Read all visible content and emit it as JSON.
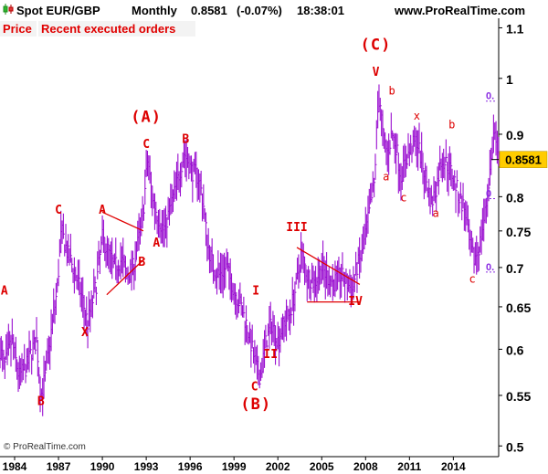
{
  "header": {
    "instrument": "Spot EUR/GBP",
    "period": "Monthly",
    "price": "0.8581",
    "change": "(-0.07%)",
    "time": "18:38:01",
    "site": "www.ProRealTime.com"
  },
  "tabs": [
    {
      "label": "Price"
    },
    {
      "label": "Recent executed orders"
    }
  ],
  "copyright": "© ProRealTime.com",
  "colors": {
    "price_series": "#9a0fd0",
    "wave_labels": "#dd0000",
    "trendlines": "#e00000",
    "current_price_badge": "#ffcc00",
    "fib_markers": "#8a2be2",
    "tab_text": "#e00000",
    "axis_text": "#000000"
  },
  "price_badge": {
    "value": "0.8581"
  },
  "chart_data": {
    "type": "bar",
    "title": "Spot EUR/GBP",
    "xlabel": "",
    "ylabel": "",
    "scale": "log",
    "xlim": [
      1983.0,
      2017.1
    ],
    "ylim": [
      0.49,
      1.12
    ],
    "y_ticks": [
      0.5,
      0.55,
      0.6,
      0.65,
      0.7,
      0.75,
      0.8,
      0.9,
      1,
      1.1
    ],
    "y_tick_labels": [
      "0.5",
      "0.55",
      "0.6",
      "0.65",
      "0.7",
      "0.75",
      "0.8",
      "0.9",
      "1",
      "1.1"
    ],
    "x_ticks": [
      1984,
      1987,
      1990,
      1993,
      1996,
      1999,
      2002,
      2005,
      2008,
      2011,
      2014
    ],
    "x_tick_labels": [
      "1984",
      "1987",
      "1990",
      "1993",
      "1996",
      "1999",
      "2002",
      "2005",
      "2008",
      "2011",
      "2014"
    ],
    "grid": false,
    "price_path": [
      [
        1983.0,
        0.6
      ],
      [
        1983.3,
        0.58
      ],
      [
        1983.8,
        0.61
      ],
      [
        1984.3,
        0.57
      ],
      [
        1984.8,
        0.58
      ],
      [
        1985.2,
        0.6
      ],
      [
        1985.5,
        0.61
      ],
      [
        1985.8,
        0.55
      ],
      [
        1986.1,
        0.57
      ],
      [
        1986.5,
        0.62
      ],
      [
        1986.9,
        0.67
      ],
      [
        1987.2,
        0.75
      ],
      [
        1987.6,
        0.72
      ],
      [
        1988.0,
        0.7
      ],
      [
        1988.5,
        0.67
      ],
      [
        1989.0,
        0.63
      ],
      [
        1989.6,
        0.68
      ],
      [
        1990.0,
        0.74
      ],
      [
        1990.4,
        0.72
      ],
      [
        1990.8,
        0.7
      ],
      [
        1991.3,
        0.71
      ],
      [
        1991.7,
        0.69
      ],
      [
        1992.1,
        0.7
      ],
      [
        1992.5,
        0.74
      ],
      [
        1992.8,
        0.78
      ],
      [
        1993.1,
        0.86
      ],
      [
        1993.4,
        0.8
      ],
      [
        1993.8,
        0.77
      ],
      [
        1994.2,
        0.75
      ],
      [
        1994.6,
        0.78
      ],
      [
        1995.1,
        0.82
      ],
      [
        1995.6,
        0.87
      ],
      [
        1996.1,
        0.84
      ],
      [
        1996.6,
        0.83
      ],
      [
        1996.9,
        0.79
      ],
      [
        1997.2,
        0.73
      ],
      [
        1997.6,
        0.7
      ],
      [
        1998.0,
        0.69
      ],
      [
        1998.5,
        0.7
      ],
      [
        1999.0,
        0.67
      ],
      [
        1999.5,
        0.65
      ],
      [
        2000.0,
        0.62
      ],
      [
        2000.5,
        0.58
      ],
      [
        2000.8,
        0.57
      ],
      [
        2001.2,
        0.61
      ],
      [
        2001.6,
        0.63
      ],
      [
        2002.0,
        0.61
      ],
      [
        2002.4,
        0.63
      ],
      [
        2002.8,
        0.64
      ],
      [
        2003.3,
        0.68
      ],
      [
        2003.6,
        0.72
      ],
      [
        2004.0,
        0.69
      ],
      [
        2004.5,
        0.68
      ],
      [
        2005.0,
        0.7
      ],
      [
        2005.3,
        0.69
      ],
      [
        2005.8,
        0.68
      ],
      [
        2006.3,
        0.69
      ],
      [
        2006.7,
        0.68
      ],
      [
        2007.1,
        0.67
      ],
      [
        2007.4,
        0.7
      ],
      [
        2007.8,
        0.72
      ],
      [
        2008.2,
        0.77
      ],
      [
        2008.6,
        0.82
      ],
      [
        2008.8,
        0.93
      ],
      [
        2008.95,
        0.97
      ],
      [
        2009.2,
        0.89
      ],
      [
        2009.5,
        0.87
      ],
      [
        2009.8,
        0.9
      ],
      [
        2010.1,
        0.88
      ],
      [
        2010.4,
        0.83
      ],
      [
        2010.8,
        0.86
      ],
      [
        2011.2,
        0.88
      ],
      [
        2011.5,
        0.89
      ],
      [
        2011.9,
        0.85
      ],
      [
        2012.2,
        0.82
      ],
      [
        2012.5,
        0.79
      ],
      [
        2012.8,
        0.81
      ],
      [
        2013.2,
        0.86
      ],
      [
        2013.6,
        0.85
      ],
      [
        2014.0,
        0.83
      ],
      [
        2014.4,
        0.8
      ],
      [
        2014.8,
        0.78
      ],
      [
        2015.1,
        0.73
      ],
      [
        2015.4,
        0.71
      ],
      [
        2015.8,
        0.73
      ],
      [
        2016.2,
        0.78
      ],
      [
        2016.6,
        0.86
      ],
      [
        2016.8,
        0.91
      ],
      [
        2017.0,
        0.86
      ],
      [
        2017.1,
        0.858
      ]
    ],
    "wave_labels": [
      {
        "text": "A",
        "x": 1983.3,
        "y": 0.665,
        "size": "small"
      },
      {
        "text": "B",
        "x": 1985.8,
        "y": 0.54,
        "size": "small"
      },
      {
        "text": "C",
        "x": 1987.0,
        "y": 0.775,
        "size": "small"
      },
      {
        "text": "X",
        "x": 1988.8,
        "y": 0.615,
        "size": "small"
      },
      {
        "text": "A",
        "x": 1990.0,
        "y": 0.775,
        "size": "small"
      },
      {
        "text": "B",
        "x": 1992.7,
        "y": 0.702,
        "size": "small"
      },
      {
        "text": "A",
        "x": 1993.7,
        "y": 0.728,
        "size": "small"
      },
      {
        "text": "C",
        "x": 1993.0,
        "y": 0.877,
        "size": "small"
      },
      {
        "text": "(A)",
        "x": 1993.0,
        "y": 0.921,
        "size": "large"
      },
      {
        "text": "B",
        "x": 1995.7,
        "y": 0.885,
        "size": "small"
      },
      {
        "text": "I",
        "x": 2000.5,
        "y": 0.665,
        "size": "small"
      },
      {
        "text": "II",
        "x": 2001.5,
        "y": 0.59,
        "size": "small"
      },
      {
        "text": "C",
        "x": 2000.4,
        "y": 0.555,
        "size": "small"
      },
      {
        "text": "(B)",
        "x": 2000.5,
        "y": 0.536,
        "size": "large"
      },
      {
        "text": "III",
        "x": 2003.3,
        "y": 0.75,
        "size": "small"
      },
      {
        "text": "IV",
        "x": 2007.3,
        "y": 0.652,
        "size": "small"
      },
      {
        "text": "V",
        "x": 2008.7,
        "y": 1.005,
        "size": "small"
      },
      {
        "text": "(C)",
        "x": 2008.7,
        "y": 1.055,
        "size": "large"
      },
      {
        "text": "b",
        "x": 2009.8,
        "y": 0.97,
        "size": "tiny"
      },
      {
        "text": "a",
        "x": 2009.4,
        "y": 0.825,
        "size": "tiny"
      },
      {
        "text": "c",
        "x": 2010.6,
        "y": 0.793,
        "size": "tiny"
      },
      {
        "text": "x",
        "x": 2011.5,
        "y": 0.925,
        "size": "tiny"
      },
      {
        "text": "a",
        "x": 2012.8,
        "y": 0.77,
        "size": "tiny"
      },
      {
        "text": "b",
        "x": 2013.9,
        "y": 0.91,
        "size": "tiny"
      },
      {
        "text": "c",
        "x": 2015.3,
        "y": 0.68,
        "size": "tiny"
      }
    ],
    "trendlines": [
      {
        "name": "upper-channel-1990",
        "points": [
          [
            1990.0,
            0.777
          ],
          [
            1992.8,
            0.75
          ]
        ]
      },
      {
        "name": "lower-channel-1990",
        "points": [
          [
            1990.3,
            0.665
          ],
          [
            1992.9,
            0.712
          ]
        ]
      },
      {
        "name": "upper-triangle-2003",
        "points": [
          [
            2003.3,
            0.727
          ],
          [
            2007.6,
            0.678
          ]
        ]
      },
      {
        "name": "lower-triangle-2003",
        "points": [
          [
            2004.0,
            0.656
          ],
          [
            2007.6,
            0.656
          ]
        ]
      }
    ],
    "fib_markers": [
      {
        "label": "0.",
        "value": 0.958
      },
      {
        "label": "0",
        "value": 0.797
      },
      {
        "label": "0.",
        "value": 0.694
      }
    ]
  }
}
